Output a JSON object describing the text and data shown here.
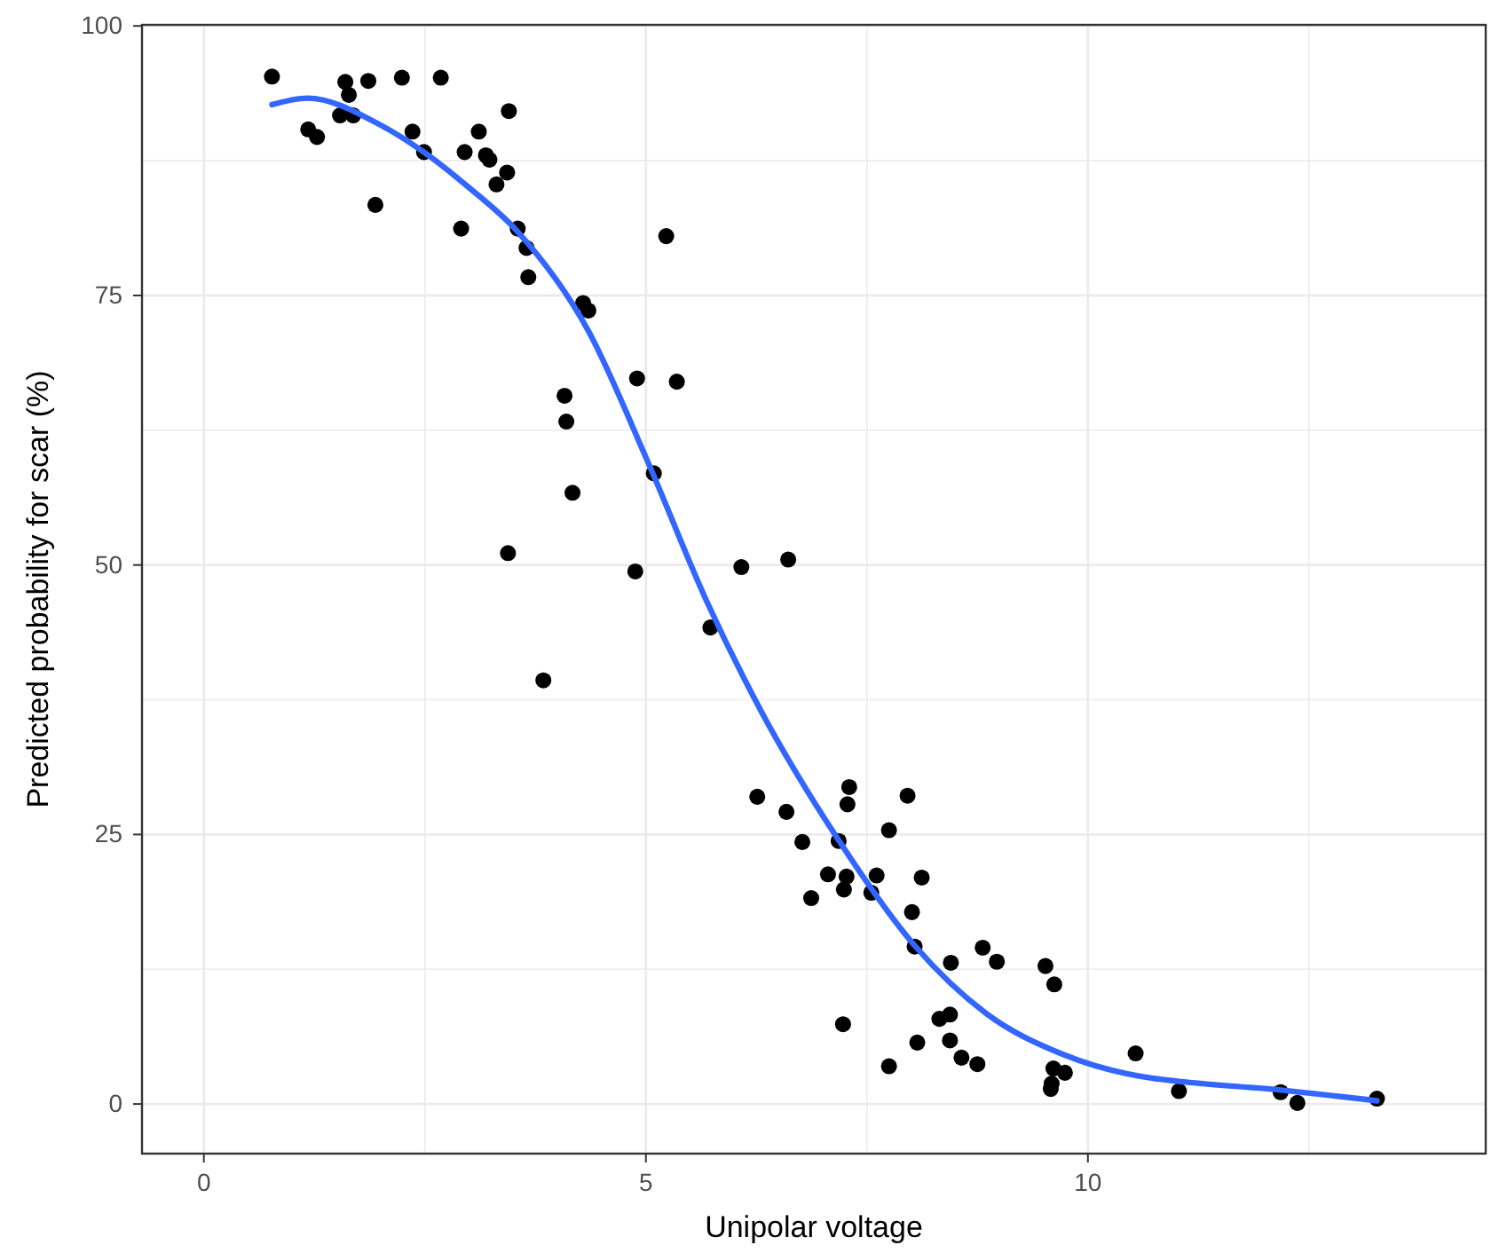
{
  "chart_data": {
    "type": "scatter",
    "xlabel": "Unipolar voltage",
    "ylabel": "Predicted probability for scar (%)",
    "xlim": [
      -0.7,
      14.5
    ],
    "ylim": [
      -4.6,
      100.1
    ],
    "xticks": [
      0,
      {
        "value": 2.5,
        "label": null
      },
      5,
      {
        "value": 7.5,
        "label": null
      },
      10,
      {
        "value": 12.5,
        "label": null
      }
    ],
    "yticks": [
      0,
      {
        "value": 12.5,
        "label": null
      },
      25,
      {
        "value": 37.5,
        "label": null
      },
      50,
      {
        "value": 62.5,
        "label": null
      },
      75,
      {
        "value": 87.5,
        "label": null
      },
      100
    ],
    "grid": true,
    "series": [
      {
        "color": "#000000",
        "marker": "circle",
        "x": [
          0.77,
          1.18,
          1.28,
          1.54,
          1.69,
          1.6,
          1.64,
          1.86,
          1.94,
          2.24,
          2.36,
          2.49,
          2.68,
          2.91,
          2.95,
          3.11,
          3.19,
          3.23,
          3.43,
          3.31,
          3.45,
          3.55,
          3.65,
          3.67,
          4.29,
          4.35,
          5.23,
          4.9,
          5.35,
          4.08,
          4.1,
          4.17,
          5.09,
          3.44,
          4.88,
          6.08,
          3.84,
          5.73,
          6.61,
          6.26,
          6.59,
          6.77,
          7.06,
          6.87,
          7.18,
          7.3,
          7.28,
          7.27,
          7.24,
          7.23,
          7.55,
          7.61,
          7.75,
          7.96,
          7.75,
          8.01,
          8.12,
          8.04,
          8.45,
          8.81,
          8.97,
          8.32,
          8.44,
          8.07,
          8.44,
          8.57,
          8.75,
          9.52,
          9.62,
          9.61,
          9.74,
          9.59,
          9.58,
          10.54,
          11.03,
          12.18,
          12.37,
          13.27
        ],
        "values": [
          95.3,
          90.4,
          89.7,
          91.7,
          91.7,
          94.8,
          93.6,
          94.9,
          83.4,
          95.2,
          90.2,
          88.3,
          95.2,
          81.2,
          88.3,
          90.2,
          88.0,
          87.6,
          86.4,
          85.3,
          92.1,
          81.2,
          79.4,
          76.7,
          74.3,
          73.6,
          80.5,
          67.3,
          67.0,
          65.7,
          63.3,
          56.7,
          58.5,
          51.1,
          49.4,
          49.8,
          39.3,
          44.2,
          50.5,
          28.5,
          27.1,
          24.3,
          21.3,
          19.1,
          24.4,
          29.4,
          27.8,
          21.1,
          19.9,
          7.4,
          19.6,
          21.2,
          25.4,
          28.6,
          3.5,
          17.8,
          21.0,
          14.6,
          13.1,
          14.5,
          13.2,
          7.9,
          8.3,
          5.7,
          5.9,
          4.3,
          3.7,
          12.8,
          11.1,
          3.3,
          2.9,
          1.9,
          1.4,
          4.7,
          1.2,
          1.1,
          0.1,
          0.5
        ]
      },
      {
        "type": "line",
        "color": "#3366ff",
        "marker": "none",
        "line_style": "solid",
        "x": [
          0.77,
          1.17,
          2.0,
          2.47,
          3.0,
          3.54,
          4.35,
          5.02,
          5.69,
          6.3,
          7.17,
          8.04,
          8.85,
          9.72,
          10.72,
          11.03,
          12.18,
          13.27
        ],
        "values": [
          92.7,
          93.3,
          90.8,
          88.4,
          85.0,
          81.0,
          71.7,
          59.6,
          46.6,
          36.5,
          24.6,
          14.7,
          8.4,
          4.6,
          2.4,
          2.1,
          1.3,
          0.3
        ]
      }
    ]
  }
}
